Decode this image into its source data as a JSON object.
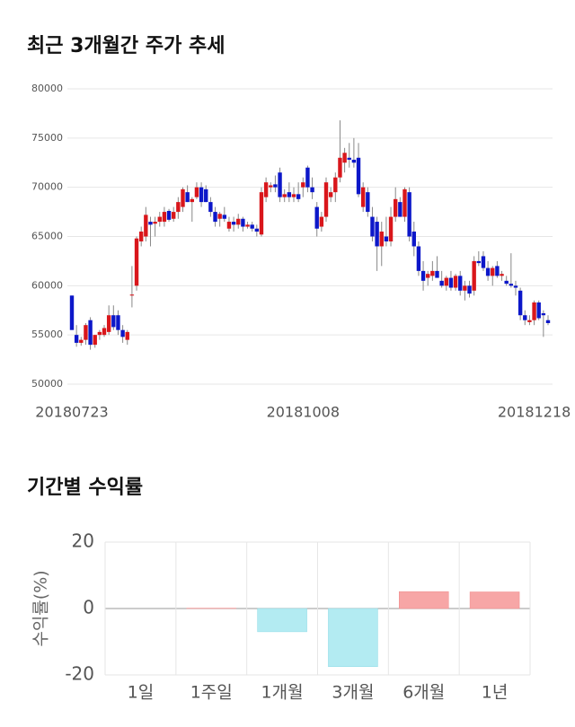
{
  "chart_data": [
    {
      "type": "candlestick",
      "title": "최근 3개월간 주가 추세",
      "categories": [
        "20180723",
        null,
        null,
        null,
        null,
        null,
        null,
        null,
        null,
        null,
        null,
        null,
        null,
        null,
        null,
        null,
        null,
        null,
        null,
        null,
        null,
        null,
        null,
        null,
        null,
        null,
        null,
        null,
        null,
        null,
        null,
        null,
        null,
        null,
        null,
        null,
        null,
        null,
        null,
        null,
        null,
        null,
        null,
        null,
        null,
        null,
        null,
        null,
        null,
        null,
        "20181008",
        null,
        null,
        null,
        null,
        null,
        null,
        null,
        null,
        null,
        null,
        null,
        null,
        null,
        null,
        null,
        null,
        null,
        null,
        null,
        null,
        null,
        null,
        null,
        null,
        null,
        null,
        null,
        null,
        null,
        null,
        null,
        null,
        null,
        null,
        null,
        null,
        null,
        null,
        null,
        null,
        null,
        null,
        null,
        null,
        null,
        null,
        null,
        null,
        null,
        "20181218",
        null,
        null,
        null
      ],
      "open": [
        59000,
        55000,
        54200,
        54500,
        56500,
        54000,
        55000,
        55000,
        55300,
        57000,
        57000,
        55500,
        54500,
        59000,
        60000,
        64500,
        65000,
        66500,
        66300,
        66500,
        66500,
        67600,
        66800,
        67500,
        68000,
        69500,
        68500,
        69000,
        70000,
        69800,
        68500,
        67500,
        66800,
        67200,
        65800,
        66500,
        66200,
        66800,
        66000,
        66200,
        65800,
        65200,
        69000,
        70000,
        70300,
        71500,
        69000,
        69500,
        69000,
        69300,
        70000,
        72000,
        70000,
        68000,
        66000,
        67000,
        69000,
        69500,
        71000,
        72500,
        73000,
        72800,
        73000,
        68000,
        69500,
        67000,
        66500,
        64000,
        65000,
        64500,
        67000,
        68500,
        67000,
        69500,
        65500,
        64000,
        61500,
        60800,
        61000,
        61500,
        60500,
        60000,
        60800,
        59800,
        61000,
        59500,
        60000,
        59500,
        62500,
        63000,
        61800,
        61000,
        62000,
        61000,
        60500,
        60200,
        60000,
        59500,
        57000,
        56300,
        56500,
        58300,
        57200,
        56500
      ],
      "high": [
        59000,
        56000,
        54800,
        56200,
        56800,
        55000,
        55500,
        56000,
        58000,
        58000,
        57500,
        56000,
        55500,
        62000,
        65000,
        66000,
        68000,
        67000,
        67000,
        67500,
        68000,
        67800,
        68000,
        69000,
        70000,
        70200,
        69000,
        70500,
        70500,
        70200,
        69000,
        68000,
        67500,
        68000,
        67000,
        67000,
        67300,
        67000,
        66500,
        66500,
        66200,
        70000,
        71000,
        70500,
        71200,
        72000,
        69800,
        70500,
        70000,
        70500,
        71000,
        72200,
        71000,
        68500,
        67500,
        71000,
        70000,
        71500,
        76800,
        74000,
        74500,
        75000,
        74500,
        70500,
        70000,
        68000,
        67000,
        66500,
        67000,
        68000,
        70000,
        69000,
        70000,
        70000,
        66500,
        64500,
        62500,
        61500,
        62500,
        63000,
        61500,
        61000,
        61500,
        61200,
        61500,
        60500,
        60500,
        63000,
        63500,
        63500,
        62500,
        62000,
        62500,
        61500,
        61000,
        63300,
        60500,
        59800,
        57500,
        57000,
        58500,
        58500,
        57500,
        57000
      ],
      "low": [
        55500,
        53800,
        53900,
        54000,
        53500,
        53700,
        54500,
        54800,
        55000,
        55500,
        55000,
        54200,
        54000,
        57800,
        59500,
        64000,
        64500,
        64000,
        65000,
        66000,
        66000,
        66500,
        66500,
        66800,
        67500,
        68500,
        66500,
        68800,
        68000,
        68500,
        67000,
        66000,
        66000,
        66500,
        65500,
        65500,
        65800,
        65500,
        65800,
        65500,
        65000,
        65000,
        68500,
        69500,
        69500,
        68500,
        68500,
        68500,
        68500,
        68500,
        69000,
        69500,
        68800,
        65000,
        65500,
        66500,
        68500,
        68500,
        70500,
        71500,
        72000,
        72000,
        69000,
        67500,
        67000,
        64500,
        61500,
        62000,
        64000,
        64000,
        66500,
        67000,
        66500,
        64500,
        63000,
        61000,
        59500,
        60000,
        60500,
        60800,
        59800,
        59500,
        59500,
        59500,
        59000,
        58500,
        58800,
        59000,
        62000,
        61500,
        60500,
        60000,
        60800,
        60500,
        60000,
        59800,
        59000,
        56500,
        56000,
        56000,
        56000,
        56500,
        54800,
        56000
      ],
      "close": [
        55500,
        54200,
        54500,
        56000,
        54000,
        55000,
        55300,
        55700,
        57000,
        55800,
        55500,
        54800,
        55300,
        59100,
        64800,
        65500,
        67200,
        66200,
        66500,
        67000,
        67500,
        66700,
        67500,
        68500,
        69800,
        68500,
        68800,
        70000,
        68500,
        68500,
        67500,
        66500,
        67300,
        66800,
        66500,
        66200,
        66800,
        66000,
        66200,
        65800,
        65500,
        69500,
        70500,
        70200,
        70000,
        69000,
        69300,
        69000,
        69300,
        68800,
        70500,
        70000,
        69500,
        65800,
        67000,
        70500,
        69500,
        71000,
        73000,
        73500,
        72800,
        72500,
        69300,
        70000,
        67500,
        65000,
        64000,
        65500,
        64500,
        67000,
        68800,
        67000,
        69800,
        65000,
        64000,
        61500,
        60500,
        61200,
        61500,
        60800,
        60000,
        60800,
        59800,
        61000,
        59500,
        60000,
        59200,
        62500,
        62300,
        61800,
        61000,
        61800,
        61000,
        61200,
        60200,
        60000,
        59800,
        57000,
        56500,
        56500,
        58300,
        56700,
        57000,
        56200
      ],
      "up_color": "#d9161b",
      "down_color": "#0c17c9",
      "ylim": [
        50000,
        80000
      ],
      "yticks": [
        50000,
        55000,
        60000,
        65000,
        70000,
        75000,
        80000
      ],
      "grid": true
    },
    {
      "type": "bar",
      "title": "기간별 수익률",
      "y_label": "수익률(%)",
      "categories": [
        "1일",
        "1주일",
        "1개월",
        "3개월",
        "6개월",
        "1년"
      ],
      "values": [
        0,
        0.1,
        -7,
        -17.5,
        5.1,
        5
      ],
      "positive_color": "#f7a6a6",
      "negative_color": "#b3ebf2",
      "ylim": [
        -20,
        20
      ],
      "yticks": [
        -20,
        0,
        20
      ],
      "grid": true
    }
  ]
}
